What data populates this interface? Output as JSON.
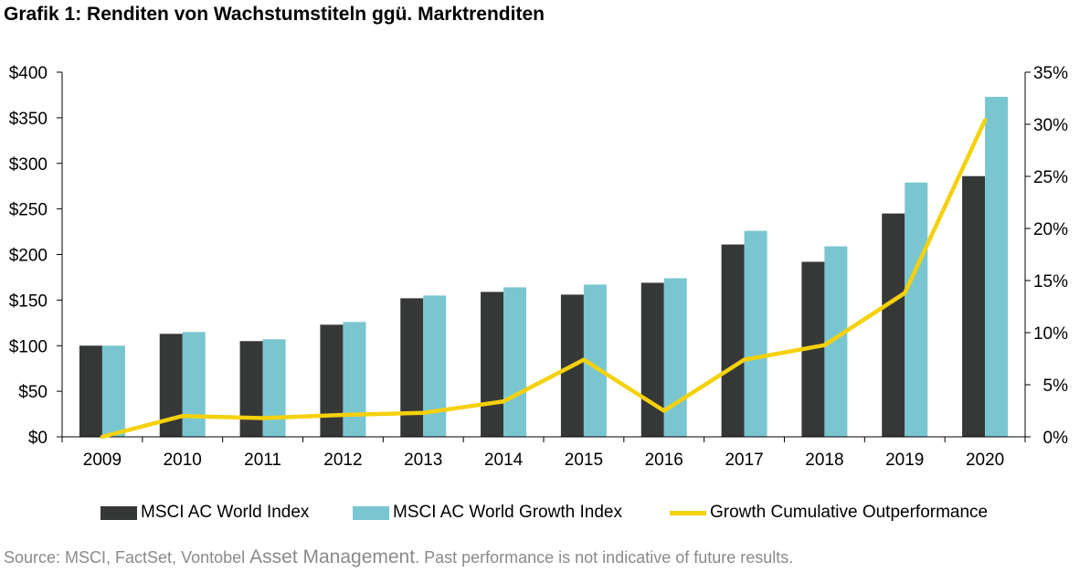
{
  "chart_data": {
    "type": "bar",
    "title": "Grafik 1: Renditen von Wachstumstiteln ggü. Marktrenditen",
    "categories": [
      "2009",
      "2010",
      "2011",
      "2012",
      "2013",
      "2014",
      "2015",
      "2016",
      "2017",
      "2018",
      "2019",
      "2020"
    ],
    "series": [
      {
        "name": "MSCI AC World Index",
        "type": "bar",
        "axis": "left",
        "color": "#363838",
        "values": [
          100,
          113,
          105,
          123,
          152,
          159,
          156,
          169,
          211,
          192,
          245,
          286
        ]
      },
      {
        "name": "MSCI AC World Growth Index",
        "type": "bar",
        "axis": "left",
        "color": "#79c6d1",
        "values": [
          100,
          115,
          107,
          126,
          155,
          164,
          167,
          174,
          226,
          209,
          279,
          373
        ]
      },
      {
        "name": "Growth Cumulative Outperformance",
        "type": "line",
        "axis": "right",
        "color": "#f5d10c",
        "values": [
          0.0,
          2.0,
          1.8,
          2.1,
          2.3,
          3.4,
          7.4,
          2.5,
          7.4,
          8.8,
          13.8,
          30.4
        ]
      }
    ],
    "y_left": {
      "ylim": [
        0,
        400
      ],
      "ticks": [
        0,
        50,
        100,
        150,
        200,
        250,
        300,
        350,
        400
      ],
      "tick_labels": [
        "$0",
        "$50",
        "$100",
        "$150",
        "$200",
        "$250",
        "$300",
        "$350",
        "$400"
      ]
    },
    "y_right": {
      "ylim": [
        0,
        35
      ],
      "ticks": [
        0,
        5,
        10,
        15,
        20,
        25,
        30,
        35
      ],
      "tick_labels": [
        "0%",
        "5%",
        "10%",
        "15%",
        "20%",
        "25%",
        "30%",
        "35%"
      ]
    },
    "grid": false,
    "legend_position": "bottom"
  },
  "source_text": {
    "part1": "Source: MSCI, FactSet, Vontobel ",
    "part2": "Asset Management",
    "part3": ". Past performance is not indicative of future results."
  }
}
